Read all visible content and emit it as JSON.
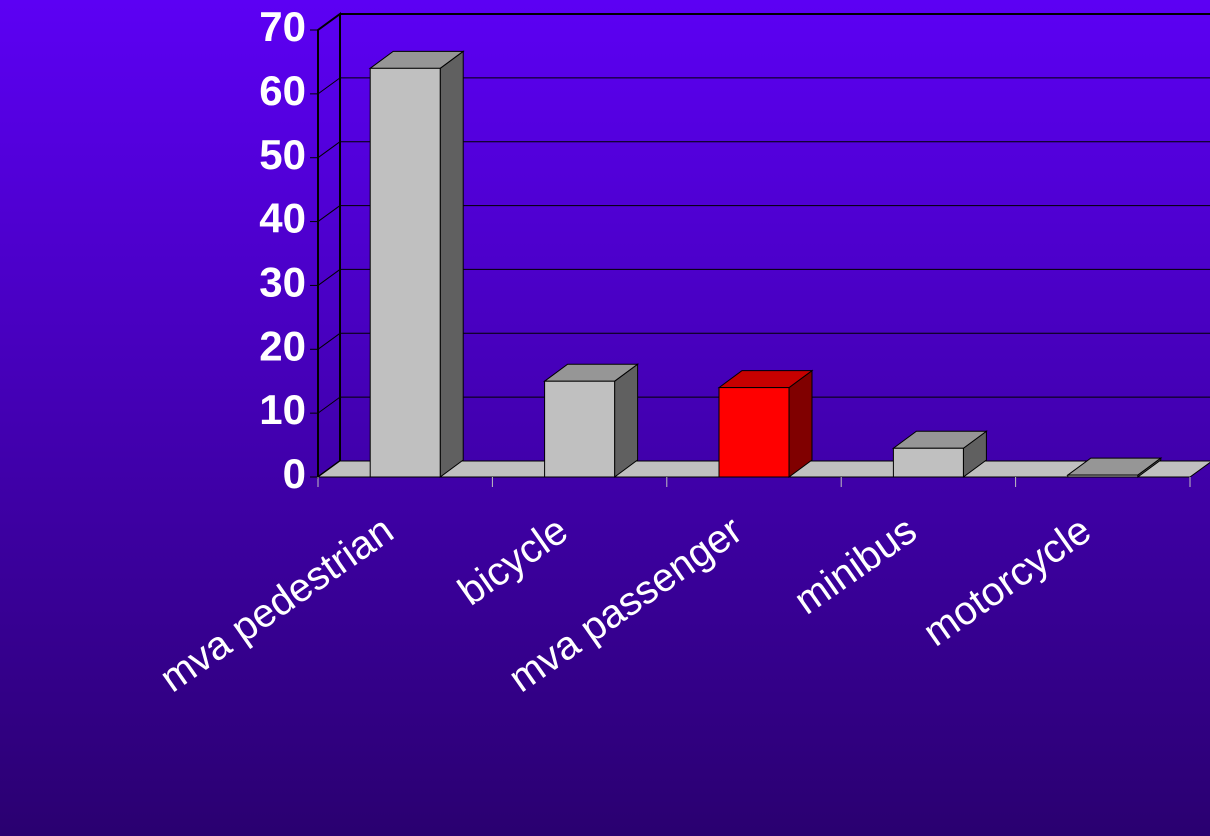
{
  "chart_data": {
    "type": "bar3d",
    "categories": [
      "mva pedestrian",
      "bicycle",
      "mva passenger",
      "minibus",
      "motorcycle"
    ],
    "values": [
      64,
      15,
      14,
      4.5,
      0.3
    ],
    "colors": [
      "#c0c0c0",
      "#c0c0c0",
      "#ff0000",
      "#c0c0c0",
      "#c0c0c0"
    ],
    "ylim": [
      0,
      70
    ],
    "yticks": [
      0,
      10,
      20,
      30,
      40,
      50,
      60,
      70
    ],
    "grid": true
  }
}
